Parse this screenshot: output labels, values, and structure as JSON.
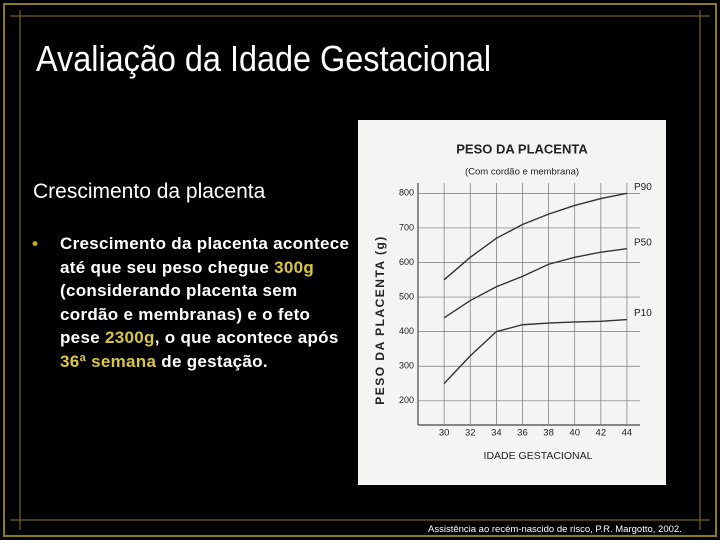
{
  "slide": {
    "title": "Avaliação da Idade Gestacional",
    "subtitle": "Crescimento da placenta",
    "bullet": [
      "Crescimento da placenta acontece até que seu peso chegue ",
      "300g",
      " (considerando placenta sem cordão e membranas) e o feto pese ",
      "2300g",
      ", o que acontece após ",
      "36ª semana",
      " de gestação."
    ],
    "footer": "Assistência ao recém-nascido de risco, P.R. Margotto, 2002."
  },
  "chart_data": {
    "type": "line",
    "title": "PESO DA PLACENTA",
    "subtitle": "(Com cordão e membrana)",
    "y_label": "PESO DA PLACENTA (g)",
    "x_label": "IDADE GESTACIONAL",
    "x": [
      30,
      32,
      34,
      36,
      38,
      40,
      42,
      44
    ],
    "series": [
      {
        "name": "P90",
        "color": "#333333",
        "values": [
          550,
          615,
          670,
          710,
          740,
          765,
          785,
          800
        ]
      },
      {
        "name": "P50",
        "color": "#333333",
        "values": [
          440,
          490,
          530,
          560,
          595,
          615,
          630,
          640
        ]
      },
      {
        "name": "P10",
        "color": "#333333",
        "values": [
          250,
          330,
          400,
          420,
          425,
          428,
          430,
          435
        ]
      }
    ],
    "xlim": [
      28,
      45
    ],
    "ylim": [
      130,
      830
    ],
    "xticks": [
      30,
      32,
      34,
      36,
      38,
      40,
      42,
      44
    ],
    "yticks": [
      200,
      300,
      400,
      500,
      600,
      700,
      800
    ],
    "grid": true
  }
}
